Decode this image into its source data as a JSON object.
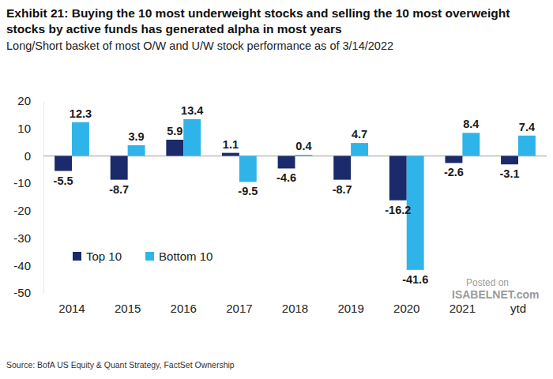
{
  "chart_data": {
    "type": "bar",
    "title": "Exhibit 21: Buying the 10 most underweight stocks and selling the 10 most overweight stocks by active funds has generated alpha in most years",
    "subtitle": "Long/Short basket of most O/W and U/W stock performance as of 3/14/2022",
    "source": "Source:  BofA US Equity & Quant Strategy, FactSet Ownership",
    "annotations": [
      "Posted on",
      "ISABELNET.com"
    ],
    "categories": [
      "2014",
      "2015",
      "2016",
      "2017",
      "2018",
      "2019",
      "2020",
      "2021",
      "ytd"
    ],
    "series": [
      {
        "name": "Top 10",
        "color": "#1b2a6b",
        "values": [
          -5.5,
          -8.7,
          5.9,
          1.1,
          -4.6,
          -8.7,
          -16.2,
          -2.6,
          -3.1
        ]
      },
      {
        "name": "Bottom 10",
        "color": "#2fb4e9",
        "values": [
          12.3,
          3.9,
          13.4,
          -9.5,
          0.4,
          4.7,
          -41.6,
          8.4,
          7.4
        ]
      }
    ],
    "ylim": [
      -50,
      20
    ],
    "yticks": [
      -50,
      -40,
      -30,
      -20,
      -10,
      0,
      10,
      20
    ],
    "grid": false,
    "legend": "lower left",
    "data_labels": true
  }
}
